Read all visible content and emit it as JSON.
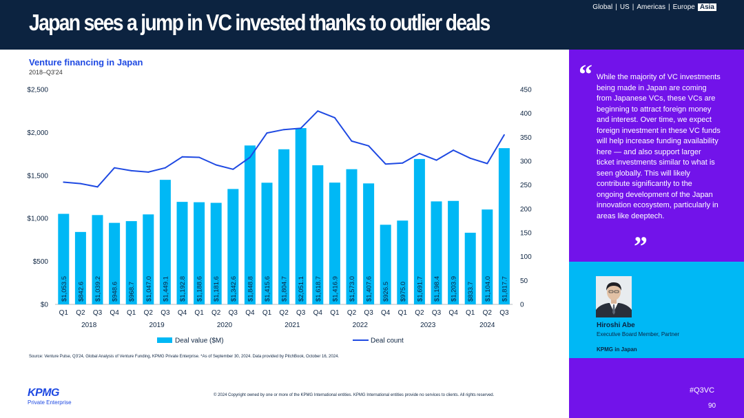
{
  "header": {
    "title": "Japan sees a jump in VC invested thanks to outlier deals",
    "regions": [
      "Global",
      "US",
      "Americas",
      "Europe"
    ],
    "active_region": "Asia",
    "separator": "|"
  },
  "colors": {
    "navy": "#0c2340",
    "bar": "#00b8f5",
    "line": "#1e49e2",
    "purple": "#7213ea",
    "cyan": "#00b8f5"
  },
  "chart_data": {
    "type": "bar",
    "title": "Venture financing in Japan",
    "subtitle": "2018–Q3'24",
    "categories": [
      "Q1",
      "Q2",
      "Q3",
      "Q4",
      "Q1",
      "Q2",
      "Q3",
      "Q4",
      "Q1",
      "Q2",
      "Q3",
      "Q4",
      "Q1",
      "Q2",
      "Q3",
      "Q4",
      "Q1",
      "Q2",
      "Q3",
      "Q4",
      "Q1",
      "Q2",
      "Q3",
      "Q4",
      "Q1",
      "Q2",
      "Q3"
    ],
    "years": [
      {
        "label": "2018",
        "start": 0,
        "end": 3
      },
      {
        "label": "2019",
        "start": 4,
        "end": 7
      },
      {
        "label": "2020",
        "start": 8,
        "end": 11
      },
      {
        "label": "2021",
        "start": 12,
        "end": 15
      },
      {
        "label": "2022",
        "start": 16,
        "end": 19
      },
      {
        "label": "2023",
        "start": 20,
        "end": 23
      },
      {
        "label": "2024",
        "start": 24,
        "end": 26
      }
    ],
    "series": [
      {
        "name": "Deal value ($M)",
        "type": "bar",
        "axis": "left",
        "values": [
          1053.5,
          842.6,
          1039.2,
          948.6,
          968.7,
          1047.0,
          1449.1,
          1192.8,
          1188.6,
          1181.6,
          1342.6,
          1848.8,
          1415.6,
          1804.7,
          2051.1,
          1618.7,
          1416.9,
          1573.0,
          1407.6,
          926.5,
          975.0,
          1691.7,
          1198.4,
          1203.9,
          833.7,
          1104.0,
          1817.7
        ],
        "labels": [
          "$1,053.5",
          "$842.6",
          "$1,039.2",
          "$948.6",
          "$968.7",
          "$1,047.0",
          "$1,449.1",
          "$1,192.8",
          "$1,188.6",
          "$1,181.6",
          "$1,342.6",
          "$1,848.8",
          "$1,415.6",
          "$1,804.7",
          "$2,051.1",
          "$1,618.7",
          "$1,416.9",
          "$1,573.0",
          "$1,407.6",
          "$926.5",
          "$975.0",
          "$1,691.7",
          "$1,198.4",
          "$1,203.9",
          "$833.7",
          "$1,104.0",
          "$1,817.7"
        ]
      },
      {
        "name": "Deal count",
        "type": "line",
        "axis": "right",
        "values": [
          256,
          253,
          246,
          286,
          280,
          277,
          286,
          309,
          308,
          292,
          283,
          308,
          359,
          366,
          369,
          405,
          391,
          342,
          332,
          294,
          296,
          316,
          302,
          323,
          306,
          295,
          355
        ]
      }
    ],
    "y_left": {
      "min": 0,
      "max": 2500,
      "ticks": [
        0,
        500,
        1000,
        1500,
        2000,
        2500
      ],
      "tick_labels": [
        "$0",
        "$500",
        "$1,000",
        "$1,500",
        "$2,000",
        "$2,500"
      ]
    },
    "y_right": {
      "min": 0,
      "max": 450,
      "ticks": [
        0,
        50,
        100,
        150,
        200,
        250,
        300,
        350,
        400,
        450
      ],
      "tick_labels": [
        "0",
        "50",
        "100",
        "150",
        "200",
        "250",
        "300",
        "350",
        "400",
        "450"
      ]
    },
    "legend": {
      "position": "bottom",
      "items": [
        "Deal value ($M)",
        "Deal count"
      ]
    },
    "grid": false
  },
  "source": "Source: Venture Pulse, Q3'24, Global Analysis of Venture Funding, KPMG Private Enterprise. *As of September 30, 2024. Data provided by PitchBook, October 16, 2024.",
  "footer": {
    "copyright": "© 2024 Copyright owned by one or more of the KPMG International entities. KPMG International entities provide no services to clients. All rights reserved.",
    "logo_text": "KPMG",
    "logo_sub": "Private Enterprise"
  },
  "sidebar": {
    "quote_open": "“",
    "quote": "While the majority of VC investments being made in Japan are coming from Japanese VCs, these VCs are beginning to attract foreign money and interest. Over time, we expect foreign investment in these VC funds will help increase funding availability here — and also support larger ticket investments similar to what is seen globally. This will likely contribute significantly to the ongoing development of the Japan innovation ecosystem, particularly in areas like deeptech.",
    "quote_close": "”",
    "person_name": "Hiroshi Abe",
    "person_role": "Executive Board Member, Partner",
    "person_org": "KPMG in Japan",
    "hashtag": "#Q3VC",
    "page_number": "90"
  }
}
